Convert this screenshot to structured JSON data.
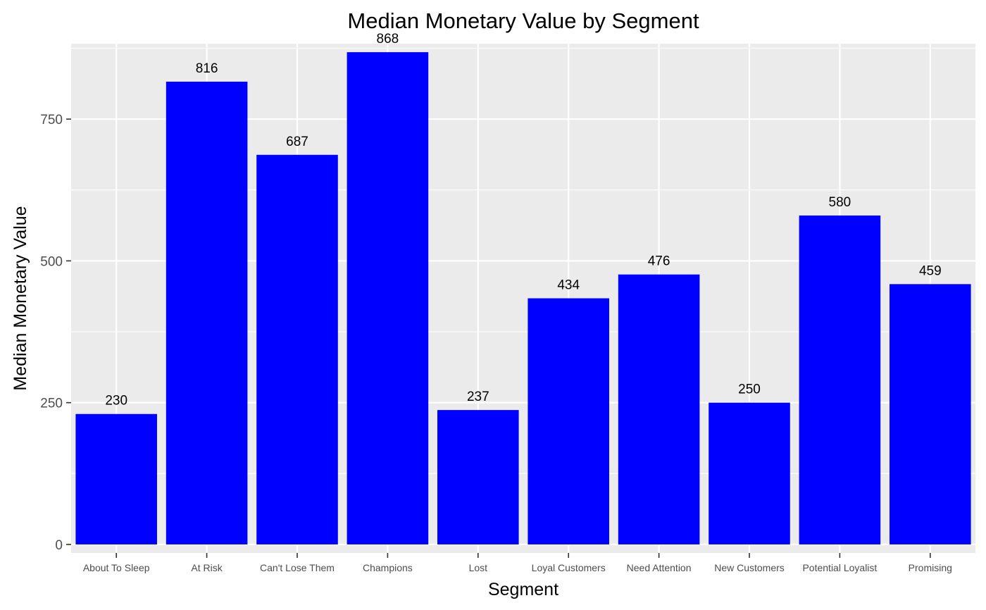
{
  "chart_data": {
    "type": "bar",
    "title": "Median Monetary Value  by Segment",
    "xlabel": "Segment",
    "ylabel": "Median Monetary Value",
    "categories": [
      "About To Sleep",
      "At Risk",
      "Can't Lose Them",
      "Champions",
      "Lost",
      "Loyal Customers",
      "Need Attention",
      "New Customers",
      "Potential Loyalist",
      "Promising"
    ],
    "values": [
      230,
      816,
      687,
      868,
      237,
      434,
      476,
      250,
      580,
      459
    ],
    "data_labels": [
      "230",
      "816",
      "687",
      "868",
      "237",
      "434",
      "476",
      "250",
      "580",
      "459"
    ],
    "ylim": [
      -15,
      883
    ],
    "yticks": [
      0,
      250,
      500,
      750
    ],
    "ytick_labels": [
      "0",
      "250",
      "500",
      "750"
    ],
    "bar_color": "#0000ff",
    "panel_background": "#ebebeb",
    "grid": true,
    "legend": "none"
  }
}
